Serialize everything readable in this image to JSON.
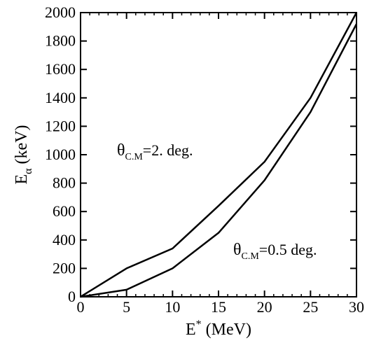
{
  "chart_data": {
    "type": "line",
    "xlim": [
      0,
      30
    ],
    "ylim": [
      0,
      2000
    ],
    "x_ticks": [
      0,
      5,
      10,
      15,
      20,
      25,
      30
    ],
    "y_ticks": [
      0,
      200,
      400,
      600,
      800,
      1000,
      1200,
      1400,
      1600,
      1800,
      2000
    ],
    "x_tick_labels": [
      "0",
      "5",
      "10",
      "15",
      "20",
      "25",
      "30"
    ],
    "y_tick_labels": [
      "0",
      "200",
      "400",
      "600",
      "800",
      "1000",
      "1200",
      "1400",
      "1600",
      "1800",
      "2000"
    ],
    "xlabel": {
      "main": "E",
      "sup": "*",
      "rest": " (MeV)"
    },
    "ylabel": {
      "main": "E",
      "sub": "α",
      "rest": " (keV)"
    },
    "series": [
      {
        "label": "θC.M=2. deg.",
        "x": [
          0,
          5,
          10,
          15,
          20,
          25,
          30
        ],
        "y": [
          0,
          200,
          340,
          640,
          950,
          1400,
          2000
        ]
      },
      {
        "label": "θC.M=0.5 deg.",
        "x": [
          0,
          5,
          10,
          15,
          20,
          25,
          30
        ],
        "y": [
          0,
          50,
          200,
          450,
          820,
          1300,
          1920
        ]
      }
    ],
    "annotations": [
      {
        "theta": "θ",
        "sub": "C.M",
        "rest": "=2. deg."
      },
      {
        "theta": "θ",
        "sub": "C.M",
        "rest": "=0.5 deg."
      }
    ],
    "grid": false
  }
}
